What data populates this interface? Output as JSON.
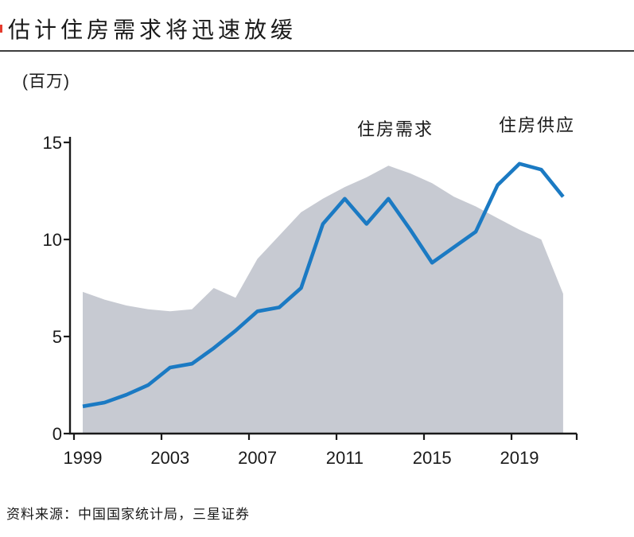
{
  "header": {
    "title": "估计住房需求将迅速放缓",
    "accent_color": "#e53c2e"
  },
  "chart": {
    "unit_label": "(百万)",
    "demand_label": "住房需求",
    "supply_label": "住房供应",
    "line_color": "#1b7ac3",
    "area_color": "#c7cad2",
    "axis_color": "#1a1a1a"
  },
  "footer": {
    "source": "资料来源：中国国家统计局，三星证券"
  },
  "chart_data": {
    "type": "line",
    "title": "估计住房需求将迅速放缓",
    "ylabel": "(百万)",
    "ylim": [
      0,
      15
    ],
    "yticks": [
      0,
      5,
      10,
      15
    ],
    "xticks": [
      1999,
      2003,
      2007,
      2011,
      2015,
      2019
    ],
    "grid": false,
    "legend_position": "inline text annotations above each series",
    "x": [
      1999,
      2000,
      2001,
      2002,
      2003,
      2004,
      2005,
      2006,
      2007,
      2008,
      2009,
      2010,
      2011,
      2012,
      2013,
      2014,
      2015,
      2016,
      2017,
      2018,
      2019,
      2020,
      2021
    ],
    "series": [
      {
        "name": "住房供应",
        "type": "area",
        "color": "#c7cad2",
        "values": [
          7.3,
          6.9,
          6.6,
          6.4,
          6.3,
          6.4,
          7.5,
          7.0,
          9.0,
          10.2,
          11.4,
          12.1,
          12.7,
          13.2,
          13.8,
          13.4,
          12.9,
          12.2,
          11.7,
          11.1,
          10.5,
          10.0,
          7.2
        ]
      },
      {
        "name": "住房需求",
        "type": "line",
        "color": "#1b7ac3",
        "values": [
          1.4,
          1.6,
          2.0,
          2.5,
          3.4,
          3.6,
          4.4,
          5.3,
          6.3,
          6.5,
          7.5,
          10.8,
          12.1,
          10.8,
          12.1,
          10.5,
          8.8,
          9.6,
          10.4,
          12.8,
          13.9,
          13.6,
          12.2
        ]
      }
    ]
  }
}
